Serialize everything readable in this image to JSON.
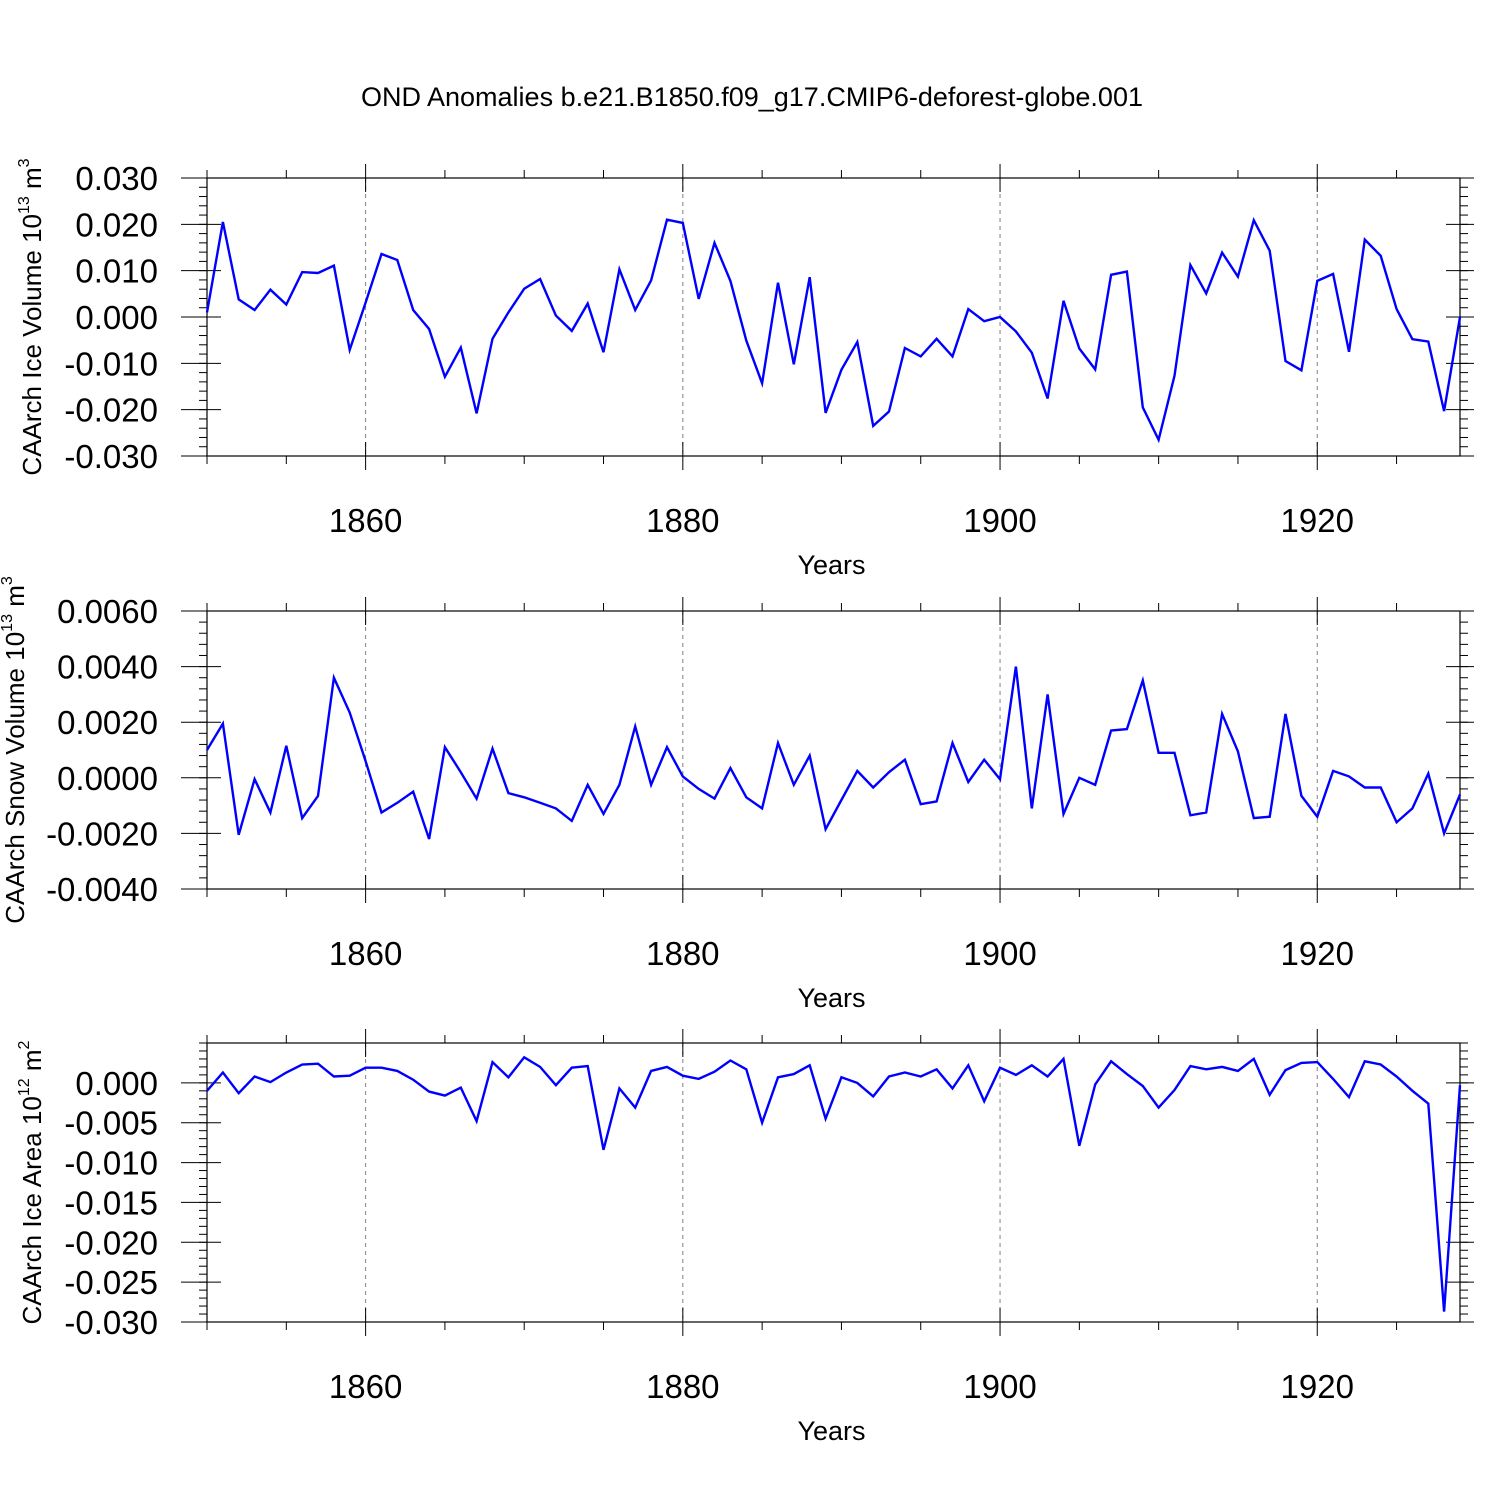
{
  "title": "OND Anomalies b.e21.B1850.f09_g17.CMIP6-deforest-globe.001",
  "colors": {
    "line": "#0000ff",
    "axis": "#000000",
    "grid": "#808080"
  },
  "chart_data": [
    {
      "type": "line",
      "ylabel": {
        "text": "CAArch Ice Volume 10",
        "exponent": "13",
        "unit": " m",
        "unit_exponent": "3"
      },
      "xlabel": "Years",
      "xlim": [
        1850,
        1929
      ],
      "ylim": [
        -0.03,
        0.03
      ],
      "yticks": [
        -0.03,
        -0.02,
        -0.01,
        0.0,
        0.01,
        0.02,
        0.03
      ],
      "ytick_labels": [
        "-0.030",
        "-0.020",
        "-0.010",
        "0.000",
        "0.010",
        "0.020",
        "0.030"
      ],
      "yminor_step": 0.002,
      "xticks": [
        1860,
        1880,
        1900,
        1920
      ],
      "xtick_labels": [
        "1860",
        "1880",
        "1900",
        "1920"
      ],
      "series": [
        {
          "name": "CAArch Ice Volume",
          "x_start": 1850,
          "values": [
            0.001,
            0.0205,
            0.0038,
            0.0015,
            0.0059,
            0.0027,
            0.0097,
            0.0095,
            0.0111,
            -0.0071,
            0.0031,
            0.0136,
            0.0123,
            0.0015,
            -0.0026,
            -0.0129,
            -0.0066,
            -0.0208,
            -0.0047,
            0.001,
            0.0061,
            0.0082,
            0.0003,
            -0.003,
            0.0029,
            -0.0076,
            0.0103,
            0.0015,
            0.0079,
            0.021,
            0.0203,
            0.0039,
            0.016,
            0.0078,
            -0.0051,
            -0.0143,
            0.0074,
            -0.0102,
            0.0086,
            -0.0207,
            -0.0114,
            -0.0054,
            -0.0235,
            -0.0204,
            -0.0067,
            -0.0085,
            -0.0047,
            -0.0085,
            0.0017,
            -0.0009,
            0.0,
            -0.0031,
            -0.0077,
            -0.0176,
            0.0035,
            -0.0068,
            -0.0113,
            0.0091,
            0.0098,
            -0.0195,
            -0.0265,
            -0.0127,
            0.0112,
            0.0051,
            0.0139,
            0.0087,
            0.0209,
            0.0143,
            -0.0095,
            -0.0115,
            0.0078,
            0.0093,
            -0.0075,
            0.0167,
            0.0132,
            0.0017,
            -0.0048,
            -0.0053,
            -0.0203,
            0.0
          ]
        }
      ]
    },
    {
      "type": "line",
      "ylabel": {
        "text": "CAArch Snow Volume 10",
        "exponent": "13",
        "unit": " m",
        "unit_exponent": "3"
      },
      "xlabel": "Years",
      "xlim": [
        1850,
        1929
      ],
      "ylim": [
        -0.004,
        0.006
      ],
      "yticks": [
        -0.004,
        -0.002,
        0.0,
        0.002,
        0.004,
        0.006
      ],
      "ytick_labels": [
        "-0.0040",
        "-0.0020",
        "0.0000",
        "0.0020",
        "0.0040",
        "0.0060"
      ],
      "yminor_step": 0.0004,
      "xticks": [
        1860,
        1880,
        1900,
        1920
      ],
      "xtick_labels": [
        "1860",
        "1880",
        "1900",
        "1920"
      ],
      "series": [
        {
          "name": "CAArch Snow Volume",
          "x_start": 1850,
          "values": [
            0.001,
            0.00195,
            -0.00205,
            -5e-05,
            -0.00125,
            0.00115,
            -0.00145,
            -0.00065,
            0.0036,
            0.00235,
            0.0006,
            -0.00125,
            -0.0009,
            -0.0005,
            -0.0022,
            0.0011,
            0.0002,
            -0.00075,
            0.00105,
            -0.00055,
            -0.0007,
            -0.0009,
            -0.0011,
            -0.00155,
            -0.00025,
            -0.0013,
            -0.00025,
            0.00185,
            -0.00025,
            0.0011,
            5e-05,
            -0.0004,
            -0.00075,
            0.00035,
            -0.0007,
            -0.0011,
            0.00125,
            -0.00025,
            0.0008,
            -0.00185,
            -0.0008,
            0.00025,
            -0.00035,
            0.0002,
            0.00065,
            -0.00095,
            -0.00085,
            0.00125,
            -0.00015,
            0.00065,
            -5e-05,
            0.004,
            -0.0011,
            0.003,
            -0.0013,
            0.0,
            -0.00025,
            0.0017,
            0.00175,
            0.0035,
            0.0009,
            0.0009,
            -0.00135,
            -0.00125,
            0.0023,
            0.00095,
            -0.00145,
            -0.0014,
            0.0023,
            -0.00065,
            -0.0014,
            0.00025,
            5e-05,
            -0.00035,
            -0.00035,
            -0.0016,
            -0.0011,
            0.00015,
            -0.002,
            -0.0006
          ]
        }
      ]
    },
    {
      "type": "line",
      "ylabel": {
        "text": "CAArch Ice Area 10",
        "exponent": "12",
        "unit": " m",
        "unit_exponent": "2"
      },
      "xlabel": "Years",
      "xlim": [
        1850,
        1929
      ],
      "ylim": [
        -0.03,
        0.005
      ],
      "yticks": [
        -0.03,
        -0.025,
        -0.02,
        -0.015,
        -0.01,
        -0.005,
        0.0
      ],
      "ytick_labels": [
        "-0.030",
        "-0.025",
        "-0.020",
        "-0.015",
        "-0.010",
        "-0.005",
        "0.000"
      ],
      "yminor_step": 0.001,
      "xticks": [
        1860,
        1880,
        1900,
        1920
      ],
      "xtick_labels": [
        "1860",
        "1880",
        "1900",
        "1920"
      ],
      "series": [
        {
          "name": "CAArch Ice Area",
          "x_start": 1850,
          "values": [
            -0.001,
            0.0013,
            -0.0013,
            0.0008,
            0.0001,
            0.0013,
            0.0023,
            0.0024,
            0.0008,
            0.0009,
            0.0019,
            0.0019,
            0.0015,
            0.0004,
            -0.0011,
            -0.0016,
            -0.0006,
            -0.0048,
            0.0026,
            0.0007,
            0.0032,
            0.002,
            -0.0003,
            0.0019,
            0.0021,
            -0.0084,
            -0.0007,
            -0.0031,
            0.0015,
            0.002,
            0.0009,
            0.0005,
            0.0014,
            0.0028,
            0.0017,
            -0.005,
            0.0007,
            0.0011,
            0.0022,
            -0.0045,
            0.0007,
            0.0,
            -0.0017,
            0.0008,
            0.0013,
            0.0008,
            0.0017,
            -0.0007,
            0.0022,
            -0.0023,
            0.0019,
            0.001,
            0.0022,
            0.0008,
            0.003,
            -0.0079,
            -0.0002,
            0.0027,
            0.0011,
            -0.0004,
            -0.0031,
            -0.0009,
            0.0021,
            0.0017,
            0.002,
            0.0015,
            0.003,
            -0.0015,
            0.0016,
            0.0025,
            0.0026,
            0.0005,
            -0.0018,
            0.0027,
            0.0023,
            0.0008,
            -0.001,
            -0.0026,
            -0.0287,
            -0.0003
          ]
        }
      ]
    }
  ]
}
